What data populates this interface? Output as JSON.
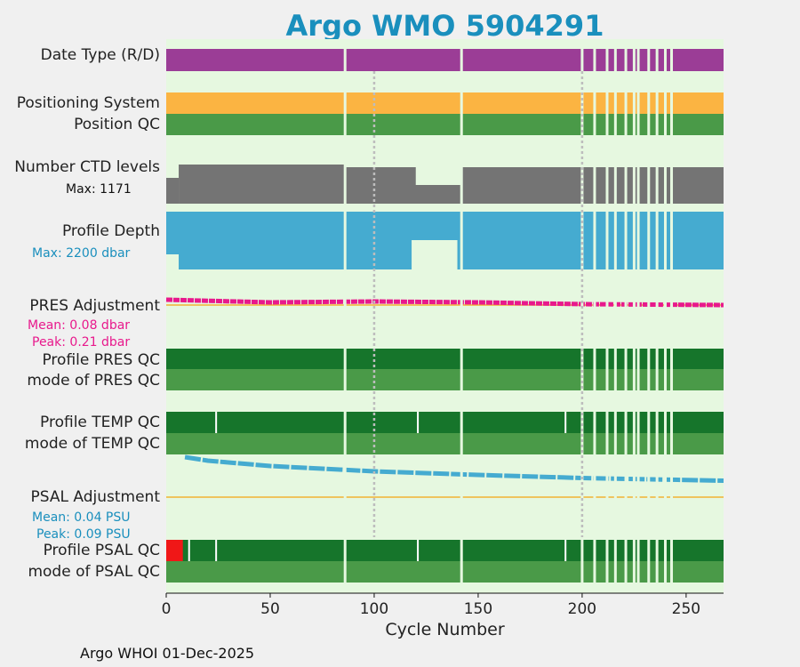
{
  "title": "Argo WMO 5904291",
  "footer": "Argo WHOI 01-Dec-2025",
  "labels": {
    "date_type": "Date Type (R/D)",
    "positioning": "Positioning System",
    "position_qc": "Position QC",
    "ctd_levels": "Number CTD levels",
    "ctd_max": "Max: 1171",
    "profile_depth": "Profile Depth",
    "depth_max": "Max: 2200 dbar",
    "pres_adj": "PRES Adjustment",
    "pres_mean": "Mean: 0.08 dbar",
    "pres_peak": "Peak: 0.21 dbar",
    "profile_pres_qc": "Profile PRES QC",
    "mode_pres_qc": "mode of PRES QC",
    "profile_temp_qc": "Profile TEMP QC",
    "mode_temp_qc": "mode of TEMP QC",
    "psal_adj": "PSAL Adjustment",
    "psal_mean": "Mean: 0.04 PSU",
    "psal_peak": "Peak: 0.09 PSU",
    "profile_psal_qc": "Profile PSAL QC",
    "mode_psal_qc": "mode of PSAL QC"
  },
  "colors": {
    "title": "#1a8fbd",
    "background": "#e6f8e0",
    "date_type": "#9b3d96",
    "positioning": "#fbb442",
    "qc_mode": "#4a9a48",
    "qc_profile": "#16752b",
    "ctd": "#747474",
    "depth": "#45abd0",
    "pres_adj": "#e8198c",
    "psal_adj": "#45abd0",
    "zero_line": "#f2b233",
    "qc_bad": "#f01717"
  },
  "chart_data": {
    "type": "multi-track timeline",
    "xlabel": "Cycle Number",
    "xlim": [
      0,
      268
    ],
    "xticks": [
      0,
      50,
      100,
      150,
      200,
      250
    ],
    "vertical_reference_lines": [
      100,
      200
    ],
    "missing_cycles": [
      86,
      142,
      200,
      206,
      212,
      216,
      221,
      225,
      227,
      232,
      236,
      240,
      243
    ],
    "ctd_levels_max": 1171,
    "profile_depth_max_dbar": 2200,
    "pres_adjustment": {
      "mean_dbar": 0.08,
      "peak_dbar": 0.21
    },
    "psal_adjustment": {
      "mean_psu": 0.04,
      "peak_psu": 0.09,
      "trend": [
        [
          9,
          0.09
        ],
        [
          20,
          0.082
        ],
        [
          50,
          0.07
        ],
        [
          100,
          0.058
        ],
        [
          150,
          0.05
        ],
        [
          200,
          0.043
        ],
        [
          268,
          0.037
        ]
      ]
    },
    "psal_qc_bad_cycles": [
      1,
      8
    ],
    "temp_qc_flagged_cycles": [
      24,
      121,
      192
    ],
    "psal_qc_flagged_cycles": [
      11,
      24,
      121,
      192
    ]
  }
}
